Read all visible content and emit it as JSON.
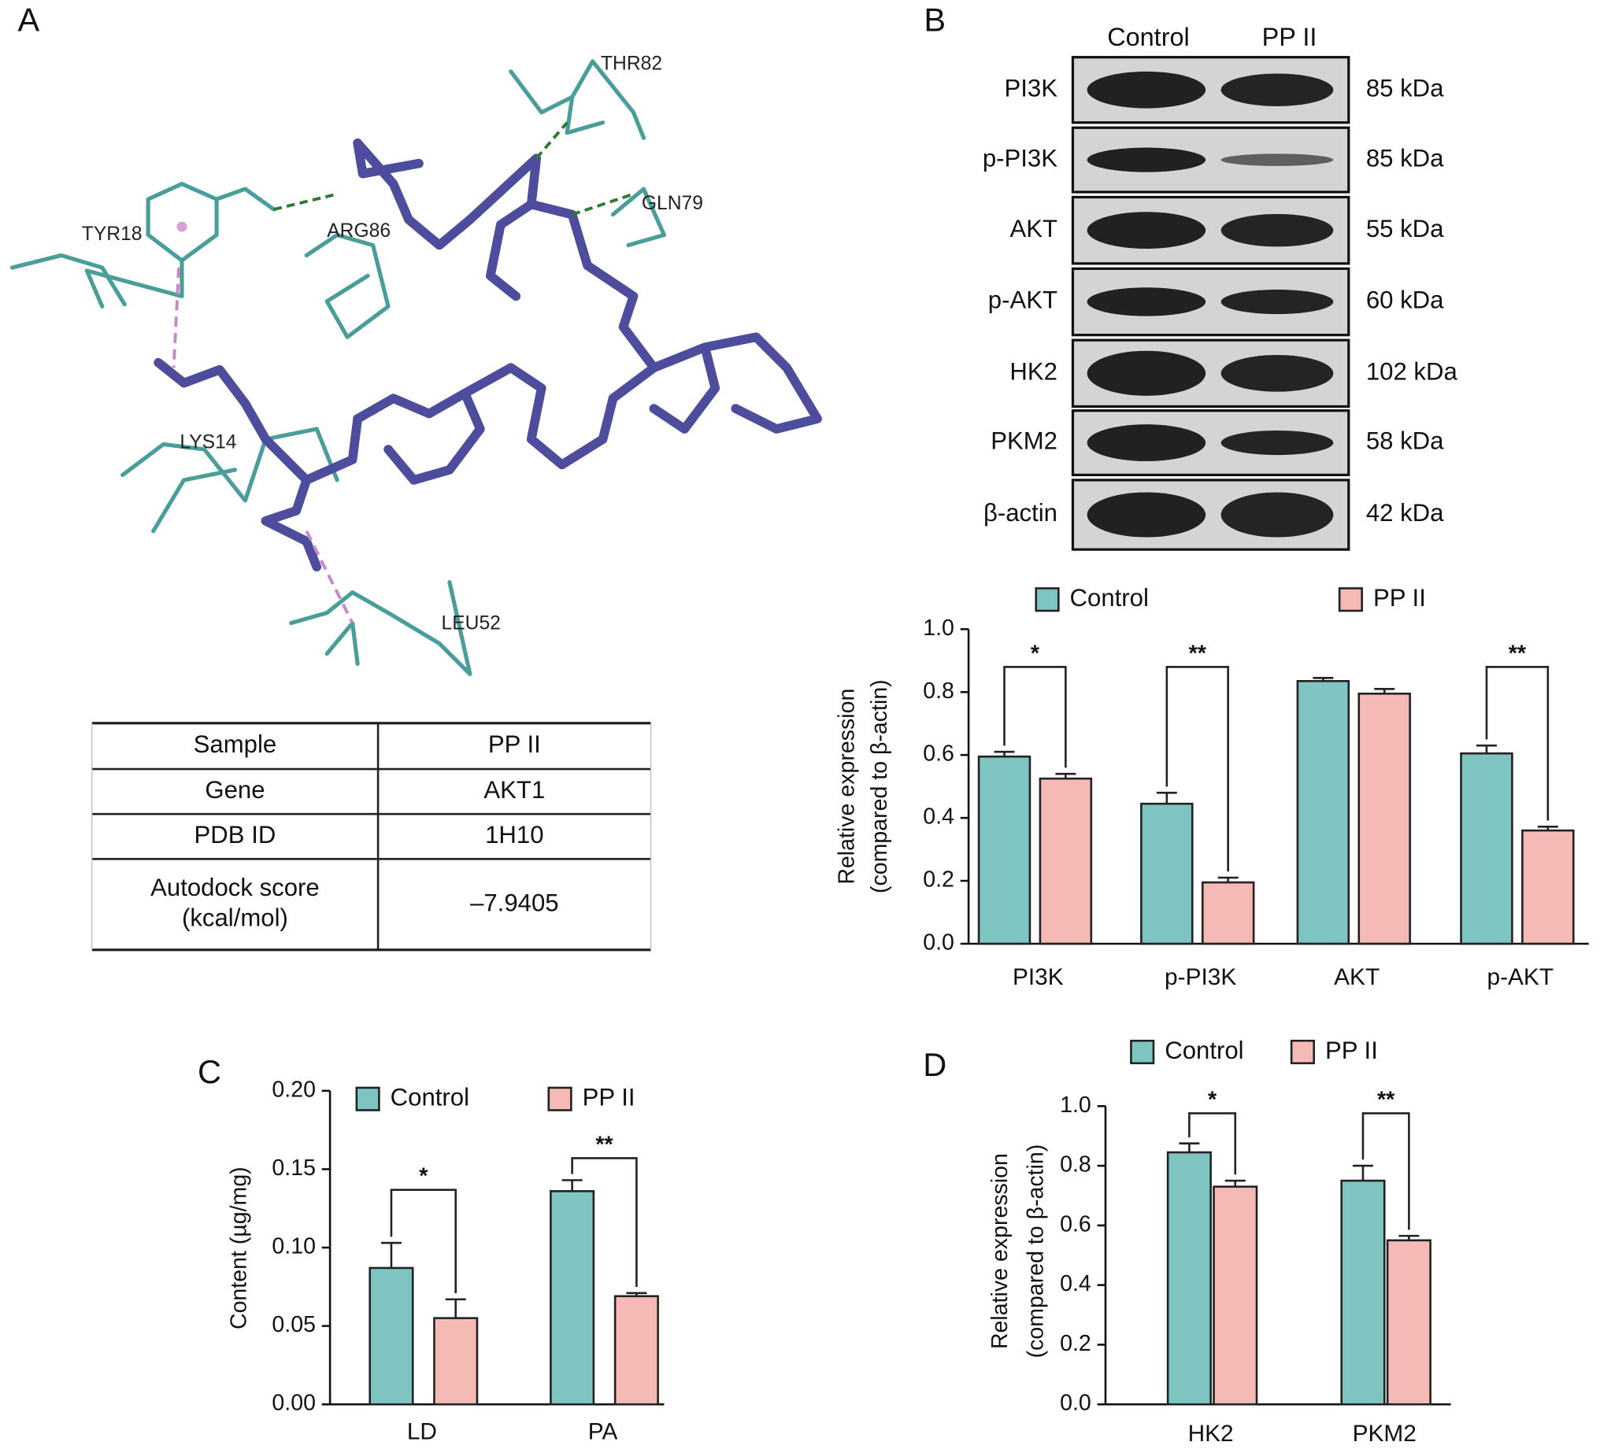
{
  "panel_labels": [
    "A",
    "B",
    "C",
    "D"
  ],
  "docking": {
    "residues": [
      "TYR18",
      "ARG86",
      "THR82",
      "GLN79",
      "LYS14",
      "LEU52"
    ]
  },
  "table": {
    "rows": [
      [
        "Sample",
        "PP II"
      ],
      [
        "Gene",
        "AKT1"
      ],
      [
        "PDB ID",
        "1H10"
      ],
      [
        [
          "Autodock score",
          "(kcal/mol)"
        ],
        "–7.9405"
      ]
    ]
  },
  "blot": {
    "columns": [
      "Control",
      "PP II"
    ],
    "proteins": [
      "PI3K",
      "p-PI3K",
      "AKT",
      "p-AKT",
      "HK2",
      "PKM2",
      "β-actin"
    ],
    "sizes": [
      "85 kDa",
      "85 kDa",
      "55 kDa",
      "60 kDa",
      "102 kDa",
      "58 kDa",
      "42 kDa"
    ]
  },
  "chart_data": [
    {
      "type": "bar",
      "categories": [
        "PI3K",
        "p-PI3K",
        "AKT",
        "p-AKT"
      ],
      "y_label": [
        "Relative expression",
        "(compared to β-actin)"
      ],
      "series": [
        {
          "name": "Control",
          "color": "#7ec4c1",
          "values": [
            0.595,
            0.445,
            0.835,
            0.605
          ],
          "errors": [
            0.015,
            0.035,
            0.01,
            0.025
          ]
        },
        {
          "name": "PP II",
          "color": "#f5b9b6",
          "values": [
            0.525,
            0.195,
            0.795,
            0.36
          ],
          "errors": [
            0.015,
            0.015,
            0.015,
            0.012
          ]
        }
      ],
      "annotations": [
        "*",
        "**",
        null,
        "**"
      ],
      "ylim": [
        0,
        1
      ],
      "yticks": [
        {
          "value": 0,
          "label": "0.0"
        },
        0.2,
        0.4,
        0.6,
        0.8,
        {
          "value": 1,
          "label": "1.0"
        }
      ],
      "grid": false
    },
    {
      "type": "bar",
      "categories": [
        "LD",
        "PA"
      ],
      "y_label": [
        "Content (µg/mg)"
      ],
      "series": [
        {
          "name": "Control",
          "color": "#7ec4c1",
          "values": [
            0.087,
            0.136
          ],
          "errors": [
            0.016,
            0.007
          ]
        },
        {
          "name": "PP II",
          "color": "#f5b9b6",
          "values": [
            0.055,
            0.069
          ],
          "errors": [
            0.012,
            0.002
          ]
        }
      ],
      "annotations": [
        "*",
        "**"
      ],
      "ylim": [
        0,
        0.2
      ],
      "yticks": [
        {
          "value": 0,
          "label": "0.00"
        },
        {
          "value": 0.05,
          "label": "0.05"
        },
        {
          "value": 0.1,
          "label": "0.10"
        },
        {
          "value": 0.15,
          "label": "0.15"
        },
        {
          "value": 0.2,
          "label": "0.20"
        }
      ],
      "grid": false
    },
    {
      "type": "bar",
      "categories": [
        "HK2",
        "PKM2"
      ],
      "y_label": [
        "Relative expression",
        "(compared to β-actin)"
      ],
      "series": [
        {
          "name": "Control",
          "color": "#7ec4c1",
          "values": [
            0.845,
            0.75
          ],
          "errors": [
            0.03,
            0.05
          ]
        },
        {
          "name": "PP II",
          "color": "#f5b9b6",
          "values": [
            0.73,
            0.55
          ],
          "errors": [
            0.02,
            0.015
          ]
        }
      ],
      "annotations": [
        "*",
        "**"
      ],
      "ylim": [
        0,
        1
      ],
      "yticks": [
        {
          "value": 0,
          "label": "0.0"
        },
        0.2,
        0.4,
        0.6,
        0.8,
        {
          "value": 1,
          "label": "1.0"
        }
      ],
      "grid": false
    }
  ]
}
